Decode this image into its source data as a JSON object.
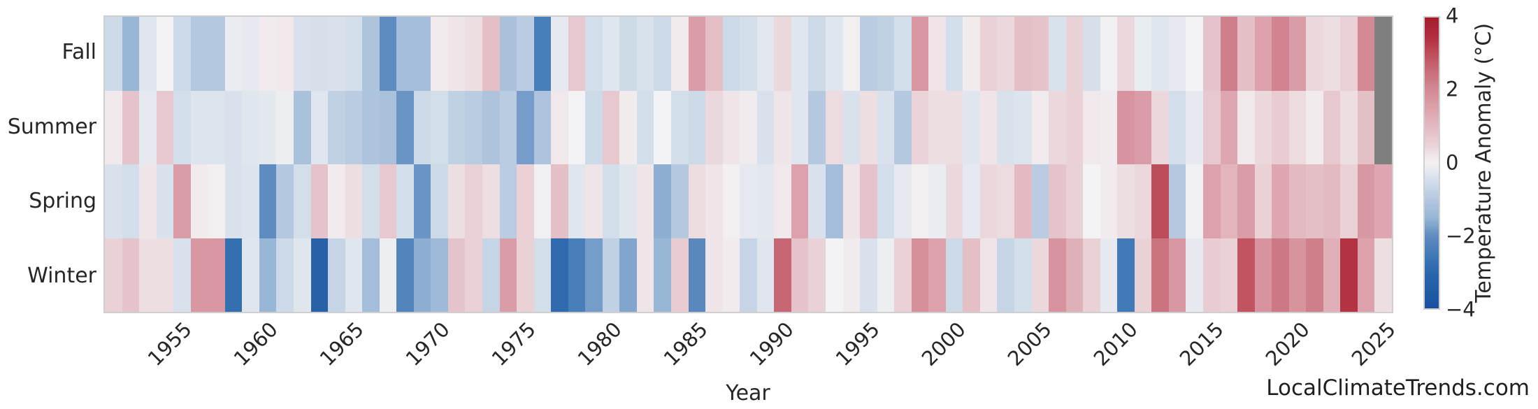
{
  "axes": {
    "xlabel": "Year",
    "row_labels": [
      "Fall",
      "Summer",
      "Spring",
      "Winter"
    ],
    "x_tick_labels": [
      "1955",
      "1960",
      "1965",
      "1970",
      "1975",
      "1980",
      "1985",
      "1990",
      "1995",
      "2000",
      "2005",
      "2010",
      "2015",
      "2020",
      "2025"
    ],
    "x_tick_years": [
      1955,
      1960,
      1965,
      1970,
      1975,
      1980,
      1985,
      1990,
      1995,
      2000,
      2005,
      2010,
      2015,
      2020,
      2025
    ]
  },
  "colorbar": {
    "label": "Temperature Anomaly (°C)",
    "tick_labels": [
      "4",
      "2",
      "0",
      "−2",
      "−4"
    ],
    "tick_values": [
      4,
      2,
      0,
      -2,
      -4
    ],
    "vmin": -4,
    "vmax": 4
  },
  "watermark": "LocalClimateTrends.com",
  "chart_data": {
    "type": "heatmap",
    "title": "",
    "xlabel": "Year",
    "ylabel": "",
    "colorbar_label": "Temperature Anomaly (°C)",
    "vmin": -4,
    "vmax": 4,
    "grid": false,
    "years": [
      1951,
      1952,
      1953,
      1954,
      1955,
      1956,
      1957,
      1958,
      1959,
      1960,
      1961,
      1962,
      1963,
      1964,
      1965,
      1966,
      1967,
      1968,
      1969,
      1970,
      1971,
      1972,
      1973,
      1974,
      1975,
      1976,
      1977,
      1978,
      1979,
      1980,
      1981,
      1982,
      1983,
      1984,
      1985,
      1986,
      1987,
      1988,
      1989,
      1990,
      1991,
      1992,
      1993,
      1994,
      1995,
      1996,
      1997,
      1998,
      1999,
      2000,
      2001,
      2002,
      2003,
      2004,
      2005,
      2006,
      2007,
      2008,
      2009,
      2010,
      2011,
      2012,
      2013,
      2014,
      2015,
      2016,
      2017,
      2018,
      2019,
      2020,
      2021,
      2022,
      2023,
      2024,
      2025
    ],
    "rows": [
      "Fall",
      "Summer",
      "Spring",
      "Winter"
    ],
    "series": [
      {
        "name": "Fall",
        "values": [
          -0.6,
          -1.5,
          -0.3,
          0.0,
          -0.6,
          -1.0,
          -1.0,
          -0.15,
          -0.2,
          0.1,
          0.15,
          -0.4,
          -0.45,
          -0.4,
          -0.5,
          -1.1,
          -2.0,
          -1.3,
          -1.3,
          0.1,
          0.2,
          0.3,
          0.9,
          -1.2,
          -0.9,
          -2.4,
          -0.2,
          0.7,
          -0.5,
          -0.3,
          -0.6,
          -0.4,
          -0.6,
          0.1,
          1.6,
          0.9,
          -0.6,
          -0.5,
          -0.25,
          0.4,
          -0.3,
          -0.6,
          -0.3,
          0.05,
          -0.9,
          -0.8,
          -0.5,
          1.7,
          0.2,
          -0.5,
          0.1,
          0.5,
          0.4,
          0.9,
          0.8,
          -0.4,
          0.5,
          -0.45,
          -0.05,
          0.4,
          -0.15,
          -0.3,
          -0.2,
          0.0,
          0.8,
          2.2,
          0.9,
          1.5,
          2.1,
          1.6,
          0.4,
          0.3,
          0.5,
          2.0,
          null
        ]
      },
      {
        "name": "Summer",
        "values": [
          0.15,
          0.8,
          -0.2,
          0.7,
          -0.5,
          -0.35,
          -0.35,
          -0.4,
          -0.3,
          -0.25,
          -0.1,
          -1.2,
          -0.3,
          -0.8,
          -0.9,
          -1.1,
          -1.2,
          -1.9,
          -0.6,
          -0.5,
          -0.8,
          -0.9,
          -1.1,
          -0.9,
          -1.8,
          -1.1,
          0.15,
          0.0,
          -0.6,
          0.7,
          0.1,
          -0.5,
          0.0,
          -0.5,
          -0.6,
          0.4,
          0.2,
          0.1,
          -0.4,
          0.2,
          -0.3,
          -1.0,
          0.35,
          -0.4,
          0.3,
          -0.4,
          -1.0,
          0.45,
          0.3,
          0.3,
          -0.3,
          0.2,
          -0.4,
          -0.35,
          0.1,
          0.4,
          0.5,
          0.15,
          0.1,
          1.8,
          1.6,
          0.4,
          -0.5,
          -0.2,
          0.7,
          1.4,
          0.15,
          0.4,
          0.6,
          0.35,
          0.1,
          0.7,
          0.3,
          0.9,
          null
        ]
      },
      {
        "name": "Spring",
        "values": [
          -0.4,
          -0.5,
          0.2,
          -0.4,
          1.6,
          0.1,
          0.05,
          -0.4,
          -0.35,
          -2.0,
          -1.0,
          -0.5,
          0.8,
          0.1,
          0.3,
          -0.5,
          0.7,
          -0.5,
          -1.9,
          -0.6,
          0.3,
          0.5,
          0.3,
          -0.9,
          0.5,
          -0.05,
          0.9,
          -0.3,
          0.2,
          -0.5,
          -0.3,
          0.2,
          -1.6,
          -1.0,
          0.35,
          0.2,
          0.05,
          -0.2,
          -0.25,
          0.15,
          1.5,
          -0.4,
          -1.3,
          0.2,
          0.8,
          -0.5,
          -0.2,
          0.05,
          -0.15,
          0.4,
          -0.2,
          0.4,
          0.35,
          1.0,
          -0.9,
          0.8,
          0.5,
          0.0,
          0.1,
          0.3,
          0.4,
          3.0,
          -1.0,
          -0.05,
          1.5,
          1.1,
          1.6,
          0.5,
          1.4,
          1.0,
          0.9,
          1.0,
          0.5,
          1.7,
          1.4
        ]
      },
      {
        "name": "Winter",
        "values": [
          0.5,
          0.8,
          0.3,
          0.3,
          -0.4,
          1.7,
          1.7,
          -2.8,
          -0.3,
          -1.5,
          -0.6,
          -0.3,
          -3.2,
          -0.7,
          -0.3,
          -1.3,
          -0.1,
          -2.2,
          -1.6,
          -1.4,
          0.8,
          0.5,
          -0.7,
          1.6,
          0.5,
          -0.5,
          -2.9,
          -2.4,
          -1.8,
          -0.8,
          -1.7,
          0.2,
          -1.5,
          0.6,
          -2.1,
          0.2,
          0.1,
          -0.7,
          -0.3,
          2.6,
          0.8,
          0.5,
          0.0,
          0.1,
          -0.4,
          -0.1,
          0.5,
          1.9,
          1.5,
          -0.6,
          0.9,
          0.2,
          -0.7,
          -0.5,
          0.4,
          1.8,
          1.2,
          0.5,
          -0.2,
          -2.5,
          0.5,
          2.4,
          1.7,
          -0.2,
          0.6,
          0.5,
          2.9,
          1.8,
          2.3,
          1.8,
          2.2,
          1.2,
          3.4,
          1.5,
          0.3
        ]
      }
    ],
    "missing_note": "null = no data (gray cell): Fall 2025 and Summer 2025",
    "colors": {
      "missing_cell": "#7f7f7f",
      "frame": "#cfcfcf",
      "text": "#262626"
    },
    "color_stops": [
      [
        -4.0,
        [
          25,
          80,
          158
        ]
      ],
      [
        -3.0,
        [
          42,
          103,
          172
        ]
      ],
      [
        -2.5,
        [
          66,
          122,
          183
        ]
      ],
      [
        -2.0,
        [
          95,
          140,
          192
        ]
      ],
      [
        -1.5,
        [
          152,
          182,
          214
        ]
      ],
      [
        -1.0,
        [
          180,
          200,
          223
        ]
      ],
      [
        -0.5,
        [
          210,
          222,
          234
        ]
      ],
      [
        0.0,
        [
          243,
          242,
          244
        ]
      ],
      [
        0.5,
        [
          233,
          209,
          214
        ]
      ],
      [
        1.0,
        [
          227,
          186,
          194
        ]
      ],
      [
        1.5,
        [
          220,
          161,
          171
        ]
      ],
      [
        2.0,
        [
          211,
          138,
          149
        ]
      ],
      [
        2.5,
        [
          201,
          110,
          122
        ]
      ],
      [
        3.0,
        [
          190,
          77,
          91
        ]
      ],
      [
        3.5,
        [
          176,
          44,
          61
        ]
      ],
      [
        4.0,
        [
          162,
          28,
          45
        ]
      ]
    ]
  }
}
